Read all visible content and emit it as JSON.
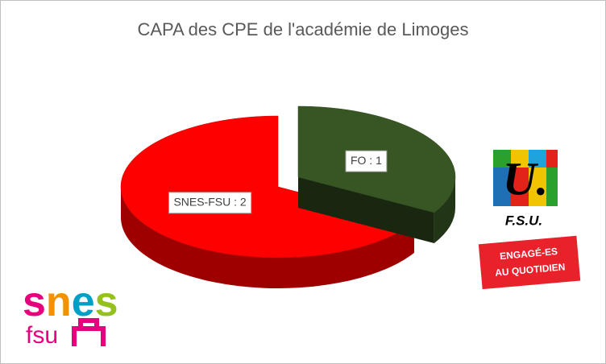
{
  "chart_data": {
    "type": "pie3d",
    "title": "CAPA des CPE de l'académie de Limoges",
    "values": [
      1,
      2
    ],
    "value_labels": [
      "FO : 1",
      "SNES-FSU : 2"
    ],
    "colors": [
      "#375623",
      "#ff0000"
    ]
  },
  "logos": {
    "fsu_mark": "U.",
    "fsu_name": "F.S.U.",
    "badge": [
      "ENGAGÉ-ES",
      "AU QUOTIDIEN"
    ],
    "snes_letters": [
      "s",
      "n",
      "e",
      "s"
    ],
    "snes_sub": "fsu"
  }
}
